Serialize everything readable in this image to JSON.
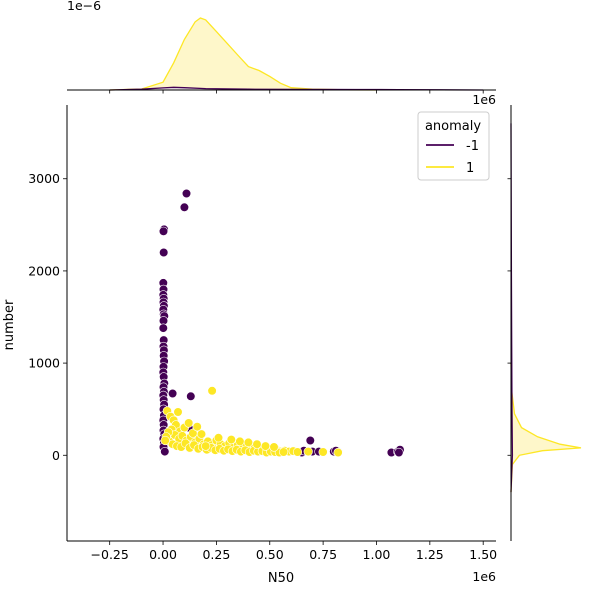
{
  "chart_data": {
    "type": "scatter",
    "subtype": "jointplot",
    "xlabel": "N50",
    "ylabel": "number",
    "x_offset_text": "1e6",
    "y_offset_text": "",
    "marginal_x_offset_text": "1e−6",
    "marginal_y_offset_text": "1e6",
    "xlim": [
      -450000,
      1560000
    ],
    "ylim": [
      -930,
      3800
    ],
    "x_ticks": [
      -250000,
      0,
      250000,
      500000,
      750000,
      1000000,
      1250000,
      1500000
    ],
    "x_tick_labels": [
      "−0.25",
      "0.00",
      "0.25",
      "0.50",
      "0.75",
      "1.00",
      "1.25",
      "1.50"
    ],
    "y_ticks": [
      0,
      1000,
      2000,
      3000
    ],
    "y_tick_labels": [
      "0",
      "1000",
      "2000",
      "3000"
    ],
    "grid": false,
    "legend": {
      "title": "anomaly",
      "placement": "top-right",
      "entries": [
        {
          "label": "-1",
          "color": "#440154"
        },
        {
          "label": "1",
          "color": "#fde725"
        }
      ]
    },
    "series": [
      {
        "name": "-1",
        "color": "#440154",
        "points": [
          [
            5000,
            2450
          ],
          [
            2000,
            2430
          ],
          [
            3000,
            2200
          ],
          [
            110000,
            2840
          ],
          [
            100000,
            2690
          ],
          [
            1000,
            1870
          ],
          [
            2000,
            1800
          ],
          [
            1000,
            1740
          ],
          [
            3000,
            1700
          ],
          [
            2000,
            1660
          ],
          [
            4000,
            1620
          ],
          [
            1000,
            1580
          ],
          [
            3000,
            1530
          ],
          [
            6000,
            1510
          ],
          [
            2000,
            1460
          ],
          [
            1000,
            1380
          ],
          [
            3000,
            1250
          ],
          [
            2000,
            1180
          ],
          [
            4000,
            1140
          ],
          [
            3000,
            1080
          ],
          [
            5000,
            1020
          ],
          [
            2000,
            960
          ],
          [
            1000,
            900
          ],
          [
            3000,
            850
          ],
          [
            6000,
            780
          ],
          [
            2000,
            740
          ],
          [
            4000,
            690
          ],
          [
            1000,
            650
          ],
          [
            3000,
            600
          ],
          [
            5000,
            550
          ],
          [
            2000,
            500
          ],
          [
            4000,
            430
          ],
          [
            1000,
            380
          ],
          [
            3000,
            330
          ],
          [
            2000,
            270
          ],
          [
            6000,
            230
          ],
          [
            1000,
            180
          ],
          [
            4000,
            130
          ],
          [
            2000,
            90
          ],
          [
            8000,
            40
          ],
          [
            45000,
            670
          ],
          [
            130000,
            640
          ],
          [
            120000,
            300
          ],
          [
            690000,
            160
          ],
          [
            700000,
            40
          ],
          [
            650000,
            30
          ],
          [
            730000,
            40
          ],
          [
            660000,
            50
          ],
          [
            800000,
            40
          ],
          [
            820000,
            35
          ],
          [
            810000,
            50
          ],
          [
            1070000,
            30
          ],
          [
            1100000,
            40
          ],
          [
            1110000,
            60
          ],
          [
            1105000,
            30
          ]
        ]
      },
      {
        "name": "1",
        "color": "#fde725",
        "points": [
          [
            230000,
            700
          ],
          [
            20000,
            480
          ],
          [
            35000,
            420
          ],
          [
            50000,
            380
          ],
          [
            70000,
            470
          ],
          [
            60000,
            330
          ],
          [
            80000,
            260
          ],
          [
            100000,
            300
          ],
          [
            40000,
            280
          ],
          [
            55000,
            220
          ],
          [
            75000,
            180
          ],
          [
            90000,
            210
          ],
          [
            110000,
            160
          ],
          [
            130000,
            200
          ],
          [
            150000,
            140
          ],
          [
            170000,
            180
          ],
          [
            190000,
            120
          ],
          [
            210000,
            150
          ],
          [
            230000,
            110
          ],
          [
            250000,
            160
          ],
          [
            270000,
            120
          ],
          [
            290000,
            100
          ],
          [
            310000,
            130
          ],
          [
            330000,
            90
          ],
          [
            350000,
            110
          ],
          [
            370000,
            80
          ],
          [
            390000,
            120
          ],
          [
            410000,
            70
          ],
          [
            430000,
            90
          ],
          [
            450000,
            60
          ],
          [
            470000,
            80
          ],
          [
            490000,
            50
          ],
          [
            510000,
            70
          ],
          [
            530000,
            60
          ],
          [
            550000,
            40
          ],
          [
            570000,
            50
          ],
          [
            590000,
            40
          ],
          [
            610000,
            45
          ],
          [
            630000,
            35
          ],
          [
            680000,
            40
          ],
          [
            750000,
            35
          ],
          [
            820000,
            30
          ],
          [
            30000,
            150
          ],
          [
            45000,
            120
          ],
          [
            65000,
            100
          ],
          [
            85000,
            90
          ],
          [
            105000,
            130
          ],
          [
            125000,
            80
          ],
          [
            145000,
            110
          ],
          [
            165000,
            70
          ],
          [
            185000,
            90
          ],
          [
            205000,
            60
          ],
          [
            225000,
            80
          ],
          [
            245000,
            55
          ],
          [
            265000,
            70
          ],
          [
            285000,
            50
          ],
          [
            305000,
            65
          ],
          [
            325000,
            45
          ],
          [
            345000,
            60
          ],
          [
            365000,
            40
          ],
          [
            385000,
            55
          ],
          [
            405000,
            35
          ],
          [
            425000,
            50
          ],
          [
            445000,
            40
          ],
          [
            465000,
            45
          ],
          [
            485000,
            30
          ],
          [
            505000,
            40
          ],
          [
            525000,
            35
          ],
          [
            545000,
            30
          ],
          [
            565000,
            35
          ],
          [
            25000,
            250
          ],
          [
            15000,
            200
          ],
          [
            10000,
            160
          ],
          [
            140000,
            240
          ],
          [
            180000,
            230
          ],
          [
            200000,
            100
          ],
          [
            260000,
            190
          ],
          [
            320000,
            170
          ],
          [
            360000,
            150
          ],
          [
            400000,
            140
          ],
          [
            440000,
            120
          ],
          [
            480000,
            100
          ],
          [
            520000,
            90
          ],
          [
            160000,
            310
          ],
          [
            120000,
            350
          ]
        ]
      }
    ],
    "marginal_x": {
      "curves": [
        {
          "name": "1",
          "color": "#fde725",
          "fill": "#fef6c4",
          "points": [
            [
              -250000,
              0
            ],
            [
              -100000,
              0.05
            ],
            [
              0,
              0.4
            ],
            [
              50000,
              1.4
            ],
            [
              100000,
              2.6
            ],
            [
              150000,
              3.5
            ],
            [
              175000,
              3.7
            ],
            [
              200000,
              3.6
            ],
            [
              250000,
              3.0
            ],
            [
              300000,
              2.4
            ],
            [
              350000,
              1.8
            ],
            [
              400000,
              1.2
            ],
            [
              450000,
              1.0
            ],
            [
              500000,
              0.7
            ],
            [
              550000,
              0.35
            ],
            [
              600000,
              0.12
            ],
            [
              700000,
              0.04
            ],
            [
              850000,
              0.01
            ],
            [
              1000000,
              0
            ]
          ]
        },
        {
          "name": "-1",
          "color": "#440154",
          "fill": "#ece7f0",
          "points": [
            [
              -250000,
              0
            ],
            [
              -100000,
              0.04
            ],
            [
              0,
              0.11
            ],
            [
              50000,
              0.14
            ],
            [
              100000,
              0.12
            ],
            [
              200000,
              0.07
            ],
            [
              400000,
              0.04
            ],
            [
              700000,
              0.03
            ],
            [
              900000,
              0.025
            ],
            [
              1100000,
              0.02
            ],
            [
              1300000,
              0.01
            ],
            [
              1500000,
              0
            ]
          ]
        }
      ]
    },
    "marginal_y": {
      "curves": [
        {
          "name": "1",
          "color": "#fde725",
          "fill": "#fef6c4",
          "points": [
            [
              -400,
              0
            ],
            [
              -100,
              0.02
            ],
            [
              0,
              0.12
            ],
            [
              50,
              0.45
            ],
            [
              80,
              1.0
            ],
            [
              120,
              0.7
            ],
            [
              200,
              0.38
            ],
            [
              300,
              0.15
            ],
            [
              450,
              0.05
            ],
            [
              700,
              0.01
            ],
            [
              1000,
              0
            ]
          ]
        },
        {
          "name": "-1",
          "color": "#440154",
          "fill": "#ece7f0",
          "points": [
            [
              -400,
              0
            ],
            [
              0,
              0.02
            ],
            [
              500,
              0.015
            ],
            [
              1200,
              0.01
            ],
            [
              2000,
              0.006
            ],
            [
              2800,
              0.003
            ],
            [
              3600,
              0
            ]
          ]
        }
      ]
    }
  }
}
